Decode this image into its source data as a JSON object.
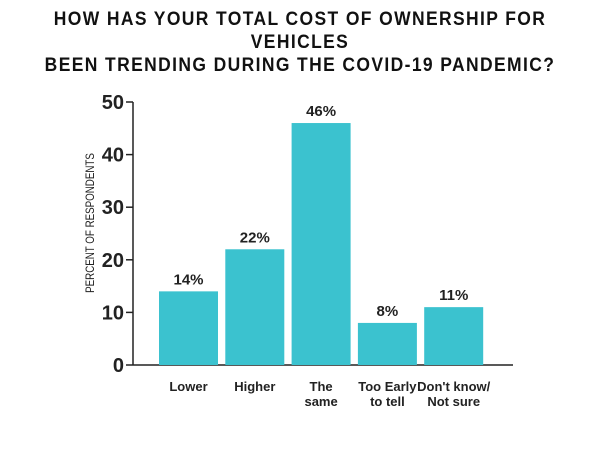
{
  "chart_data": {
    "type": "bar",
    "title_lines": [
      "HOW HAS YOUR TOTAL COST OF OWNERSHIP FOR VEHICLES",
      "BEEN TRENDING DURING THE COVID-19 PANDEMIC?"
    ],
    "ylabel": "PERCENT OF RESPONDENTS",
    "xlabel": "",
    "categories": [
      [
        "Lower"
      ],
      [
        "Higher"
      ],
      [
        "The",
        "same"
      ],
      [
        "Too Early",
        "to tell"
      ],
      [
        "Don't know/",
        "Not sure"
      ]
    ],
    "values": [
      14,
      22,
      46,
      8,
      11
    ],
    "data_labels": [
      "14%",
      "22%",
      "46%",
      "8%",
      "11%"
    ],
    "ylim": [
      0,
      50
    ],
    "yticks": [
      0,
      10,
      20,
      30,
      40,
      50
    ],
    "grid": false,
    "bar_color": "#3bc2cf"
  }
}
